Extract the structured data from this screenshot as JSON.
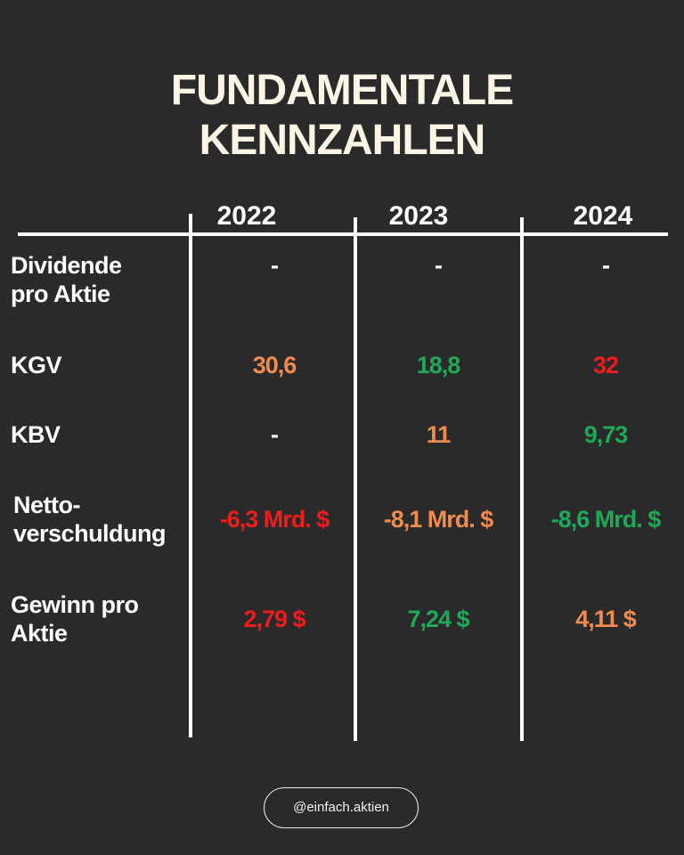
{
  "title": {
    "line1": "FUNDAMENTALE",
    "line2": "KENNZAHLEN"
  },
  "years": [
    "2022",
    "2023",
    "2024"
  ],
  "rows": [
    {
      "label_line1": "Dividende",
      "label_line2": "pro Aktie",
      "values": [
        "-",
        "-",
        "-"
      ],
      "colors": [
        "#ffffff",
        "#ffffff",
        "#ffffff"
      ]
    },
    {
      "label_line1": "KGV",
      "values": [
        "30,6",
        "18,8",
        "32"
      ],
      "colors": [
        "#f08b4f",
        "#1fa857",
        "#ee1c1c"
      ]
    },
    {
      "label_line1": "KBV",
      "values": [
        "-",
        "11",
        "9,73"
      ],
      "colors": [
        "#ffffff",
        "#f08b4f",
        "#1fa857"
      ]
    },
    {
      "label_line1": "Netto-",
      "label_line2": "verschuldung",
      "values": [
        "-6,3 Mrd. $",
        "-8,1 Mrd. $",
        "-8,6 Mrd. $"
      ],
      "colors": [
        "#ee1c1c",
        "#f08b4f",
        "#1fa857"
      ]
    },
    {
      "label_line1": "Gewinn pro",
      "label_line2": "Aktie",
      "values": [
        "2,79 $",
        "7,24 $",
        "4,11 $"
      ],
      "colors": [
        "#ee1c1c",
        "#1fa857",
        "#f08b4f"
      ]
    }
  ],
  "handle": "@einfach.aktien",
  "colors": {
    "background": "#2a2a2a",
    "title": "#fbf5e6",
    "good": "#1fa857",
    "neutral": "#f08b4f",
    "bad": "#ee1c1c"
  }
}
